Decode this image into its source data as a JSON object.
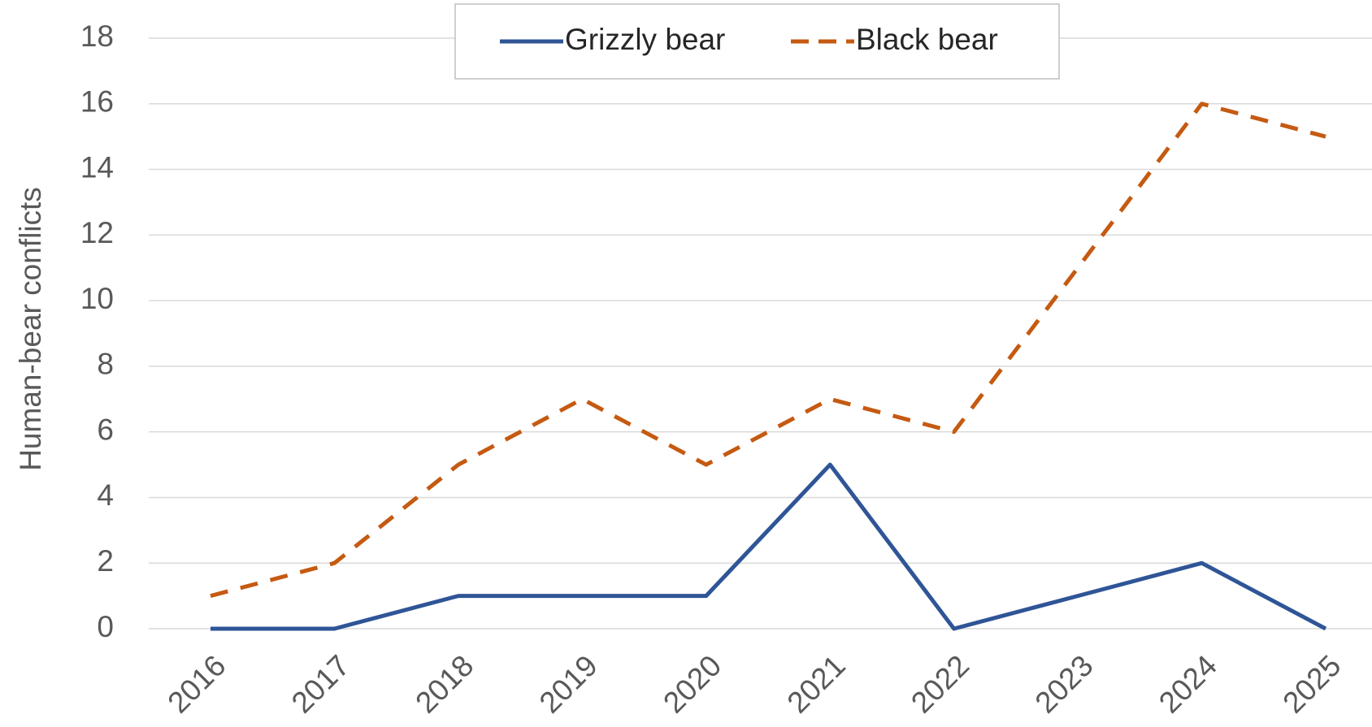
{
  "chart_data": {
    "type": "line",
    "y_label": "Human-bear conflicts",
    "x": [
      "2016",
      "2017",
      "2018",
      "2019",
      "2020",
      "2021",
      "2022",
      "2023",
      "2024",
      "2025"
    ],
    "series": [
      {
        "name": "Grizzly bear",
        "color": "#2f5597",
        "dash": "solid",
        "values": [
          0,
          0,
          1,
          1,
          1,
          5,
          0,
          1,
          2,
          0
        ]
      },
      {
        "name": "Black bear",
        "color": "#c55a11",
        "dash": "dashed",
        "values": [
          1,
          2,
          5,
          7,
          5,
          7,
          6,
          11,
          16,
          15
        ]
      }
    ],
    "ylim": [
      0,
      18
    ],
    "yticks": [
      0,
      2,
      4,
      6,
      8,
      10,
      12,
      14,
      16,
      18
    ],
    "grid": true,
    "legend": "top"
  }
}
